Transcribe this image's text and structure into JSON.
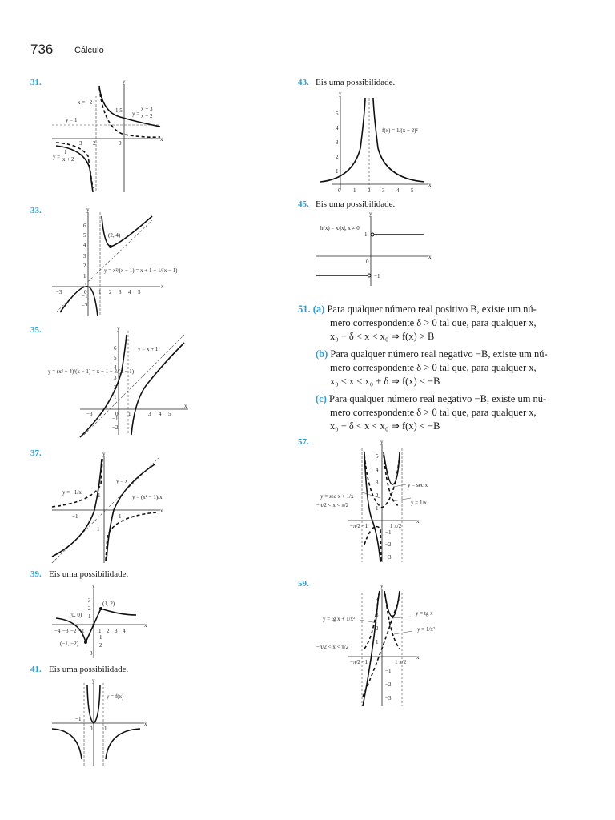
{
  "header": {
    "page_number": "736",
    "title": "Cálculo"
  },
  "problems": {
    "p31": {
      "num": "31.",
      "labels": {
        "xm2": "x = −2",
        "y1": "y = 1",
        "f1": "y =",
        "f1n": "x + 3",
        "f1d": "x + 2",
        "f2": "y =",
        "f2n": "1",
        "f2d": "x + 2",
        "t15": "1,5",
        "tm3": "−3",
        "tm2": "−2",
        "t0": "0",
        "x": "x",
        "y": "y"
      }
    },
    "p33": {
      "num": "33.",
      "labels": {
        "pt": "(2, 4)",
        "eq": "y = x²/(x − 1) = x + 1 + 1/(x − 1)",
        "ticks_y": [
          "6",
          "5",
          "4",
          "3",
          "2",
          "1",
          "−1",
          "−2"
        ],
        "ticks_x": [
          "−3",
          "0",
          "1",
          "2",
          "3",
          "4",
          "5"
        ],
        "x": "x",
        "y": "y"
      }
    },
    "p35": {
      "num": "35.",
      "labels": {
        "asym": "y = x + 1",
        "eq": "y = (x² − 4)/(x − 1) = x + 1 − 3/(x − 1)",
        "ticks_y": [
          "6",
          "5",
          "4",
          "3",
          "2",
          "1",
          "−1",
          "−2"
        ],
        "ticks_x": [
          "−3",
          "0",
          "1",
          "3",
          "4",
          "5"
        ],
        "x": "x",
        "y": "y"
      }
    },
    "p37": {
      "num": "37.",
      "labels": {
        "yx": "y = x",
        "f1": "y = −1/x",
        "f2": "y = (x² − 1)/x",
        "t1": "1",
        "tm1": "−1",
        "tx1": "1",
        "txm1": "−1",
        "x": "x",
        "y": "y"
      }
    },
    "p39": {
      "num": "39.",
      "caption": "Eis uma possibilidade.",
      "labels": {
        "p1": "(1, 2)",
        "p0": "(0, 0)",
        "pm": "(−1, −2)",
        "ticks_x": [
          "−4",
          "−3",
          "−2",
          "−1",
          "1",
          "2",
          "3",
          "4"
        ],
        "ticks_y": [
          "3",
          "2",
          "1",
          "−1",
          "−2",
          "−3"
        ],
        "x": "x",
        "y": "y"
      }
    },
    "p41": {
      "num": "41.",
      "caption": "Eis uma possibilidade.",
      "labels": {
        "f": "y = f(x)",
        "tm1": "−1",
        "t0": "0",
        "t1": "1",
        "x": "x",
        "y": "y"
      }
    },
    "p43": {
      "num": "43.",
      "caption": "Eis uma possibilidade.",
      "labels": {
        "f": "f(x) = 1/(x − 2)²",
        "ticks_x": [
          "0",
          "1",
          "2",
          "3",
          "4",
          "5"
        ],
        "ticks_y": [
          "5",
          "4",
          "3",
          "2",
          "1"
        ],
        "x": "x",
        "y": "y"
      }
    },
    "p45": {
      "num": "45.",
      "caption": "Eis uma possibilidade.",
      "labels": {
        "h": "h(x) = x/|x|, x ≠ 0",
        "t1": "1",
        "tm1": "−1",
        "t0": "0",
        "x": "x",
        "y": "y"
      }
    },
    "p51": {
      "num": "51.",
      "a": {
        "label": "(a)",
        "l1": "Para qualquer número real positivo B, existe um nú-",
        "l2": "mero correspondente δ > 0 tal que, para qualquer x,",
        "l3": "x₀ − δ < x < x₀ ⇒ f(x) > B"
      },
      "b": {
        "label": "(b)",
        "l1": "Para qualquer número real negativo −B, existe um nú-",
        "l2": "mero correspondente δ > 0 tal que, para qualquer x,",
        "l3": "x₀ < x < x₀ + δ ⇒ f(x) < −B"
      },
      "c": {
        "label": "(c)",
        "l1": "Para qualquer número real negativo −B, existe um nú-",
        "l2": "mero correspondente δ > 0 tal que, para qualquer x,",
        "l3": "x₀ − δ < x < x₀ ⇒ f(x) < −B"
      }
    },
    "p57": {
      "num": "57.",
      "labels": {
        "sum": "y = sec x + 1/x",
        "dom": "−π/2 < x < π/2",
        "sec": "y = sec x",
        "inv": "y = 1/x",
        "ticks_y": [
          "5",
          "4",
          "3",
          "2",
          "1",
          "−1",
          "−2",
          "−3"
        ],
        "tmpi": "−π/2 −1",
        "tpi": "1  π/2",
        "x": "x",
        "y": "y"
      }
    },
    "p59": {
      "num": "59.",
      "labels": {
        "sum": "y = tg x + 1/x²",
        "dom": "−π/2 < x < π/2",
        "tg": "y = tg x",
        "inv": "y = 1/x²",
        "ticks_y": [
          "4",
          "3",
          "2",
          "1",
          "−1",
          "−2",
          "−3"
        ],
        "tmpi": "−π/2 −1",
        "tpi": "1 π/2",
        "x": "x",
        "y": "y"
      }
    }
  }
}
